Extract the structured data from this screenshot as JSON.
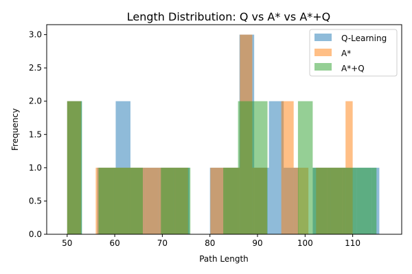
{
  "chart_data": {
    "type": "bar",
    "subtype": "overlaid histogram",
    "title": "Length Distribution: Q vs A* vs A*+Q",
    "xlabel": "Path Length",
    "ylabel": "Frequency",
    "xlim": [
      45.7,
      120.3
    ],
    "ylim": [
      0,
      3.15
    ],
    "xticks": [
      "50",
      "60",
      "70",
      "80",
      "90",
      "100",
      "110"
    ],
    "yticks": [
      "0.0",
      "0.5",
      "1.0",
      "1.5",
      "2.0",
      "2.5",
      "3.0"
    ],
    "legend_position": "top-right",
    "grid": false,
    "alpha": 0.5,
    "series": [
      {
        "name": "Q-Learning",
        "color": "#1f77b4",
        "bins": [
          {
            "x0": 50,
            "x1": 53.1,
            "value": 2
          },
          {
            "x0": 56.3,
            "x1": 60.2,
            "value": 1
          },
          {
            "x0": 60.2,
            "x1": 63.3,
            "value": 2
          },
          {
            "x0": 63.3,
            "x1": 66.4,
            "value": 1
          },
          {
            "x0": 66.4,
            "x1": 69.5,
            "value": 1
          },
          {
            "x0": 69.5,
            "x1": 72.6,
            "value": 1
          },
          {
            "x0": 72.6,
            "x1": 75.7,
            "value": 1
          },
          {
            "x0": 80,
            "x1": 83.1,
            "value": 1
          },
          {
            "x0": 83.1,
            "x1": 86.2,
            "value": 1
          },
          {
            "x0": 86.2,
            "x1": 89.3,
            "value": 3
          },
          {
            "x0": 89.3,
            "x1": 92.4,
            "value": 1
          },
          {
            "x0": 92.4,
            "x1": 95.5,
            "value": 2
          },
          {
            "x0": 95.5,
            "x1": 98.6,
            "value": 1
          },
          {
            "x0": 101.6,
            "x1": 104.7,
            "value": 1
          },
          {
            "x0": 104.7,
            "x1": 107.8,
            "value": 1
          },
          {
            "x0": 107.8,
            "x1": 110.9,
            "value": 1
          },
          {
            "x0": 110.9,
            "x1": 114,
            "value": 1
          },
          {
            "x0": 114,
            "x1": 115.6,
            "value": 1
          }
        ]
      },
      {
        "name": "A*",
        "color": "#ff7f0e",
        "bins": [
          {
            "x0": 50,
            "x1": 52.9,
            "value": 2
          },
          {
            "x0": 56,
            "x1": 59.9,
            "value": 1
          },
          {
            "x0": 59.9,
            "x1": 63,
            "value": 1
          },
          {
            "x0": 63,
            "x1": 66.1,
            "value": 1
          },
          {
            "x0": 66.1,
            "x1": 69.2,
            "value": 1
          },
          {
            "x0": 69.2,
            "x1": 72.3,
            "value": 1
          },
          {
            "x0": 72.3,
            "x1": 75.4,
            "value": 1
          },
          {
            "x0": 80.1,
            "x1": 83.2,
            "value": 1
          },
          {
            "x0": 83.2,
            "x1": 86.3,
            "value": 1
          },
          {
            "x0": 86.3,
            "x1": 88.9,
            "value": 3
          },
          {
            "x0": 88.9,
            "x1": 92,
            "value": 1
          },
          {
            "x0": 95,
            "x1": 97.6,
            "value": 2
          },
          {
            "x0": 97.6,
            "x1": 100.7,
            "value": 1
          },
          {
            "x0": 102.3,
            "x1": 105.4,
            "value": 1
          },
          {
            "x0": 105.4,
            "x1": 108.5,
            "value": 1
          },
          {
            "x0": 108.5,
            "x1": 110,
            "value": 2
          }
        ]
      },
      {
        "name": "A*+Q",
        "color": "#2ca02c",
        "bins": [
          {
            "x0": 50,
            "x1": 53.1,
            "value": 2
          },
          {
            "x0": 56.6,
            "x1": 59.7,
            "value": 1
          },
          {
            "x0": 59.7,
            "x1": 62.8,
            "value": 1
          },
          {
            "x0": 62.8,
            "x1": 65.9,
            "value": 1
          },
          {
            "x0": 69.7,
            "x1": 72.8,
            "value": 1
          },
          {
            "x0": 72.8,
            "x1": 75.9,
            "value": 1
          },
          {
            "x0": 82.8,
            "x1": 85.9,
            "value": 1
          },
          {
            "x0": 85.9,
            "x1": 89,
            "value": 2
          },
          {
            "x0": 89,
            "x1": 92.1,
            "value": 2
          },
          {
            "x0": 98.5,
            "x1": 101.6,
            "value": 2
          },
          {
            "x0": 101.6,
            "x1": 104.7,
            "value": 1
          },
          {
            "x0": 104.7,
            "x1": 107.8,
            "value": 1
          },
          {
            "x0": 107.8,
            "x1": 110.9,
            "value": 1
          },
          {
            "x0": 110.9,
            "x1": 114,
            "value": 1
          },
          {
            "x0": 114,
            "x1": 115,
            "value": 1
          }
        ]
      }
    ]
  }
}
